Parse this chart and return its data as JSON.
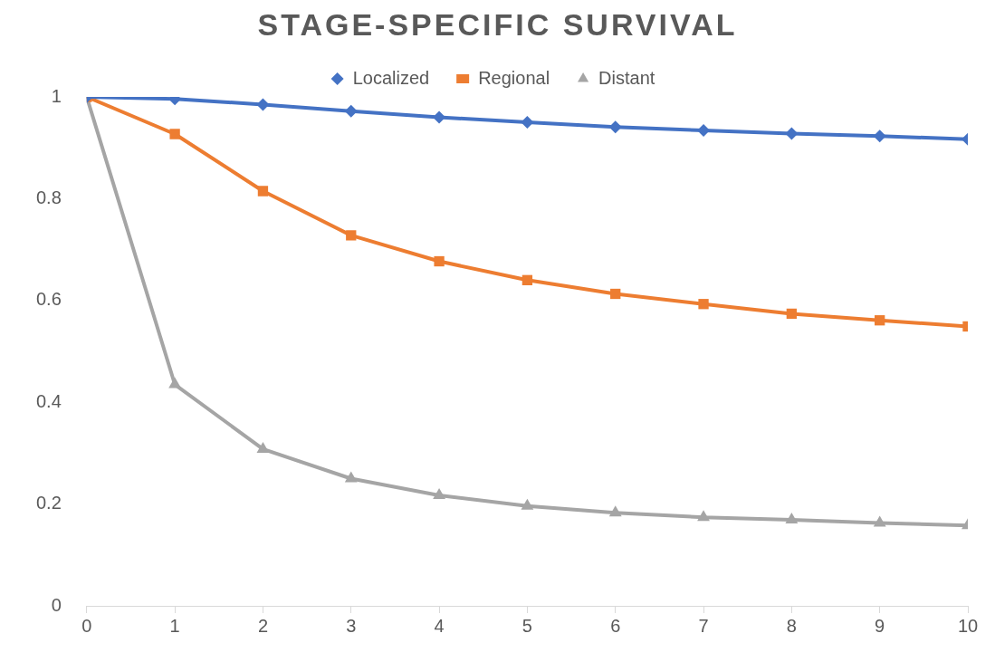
{
  "chart_data": {
    "type": "line",
    "title": "STAGE-SPECIFIC SURVIVAL",
    "x": [
      0,
      1,
      2,
      3,
      4,
      5,
      6,
      7,
      8,
      9,
      10
    ],
    "xlim": [
      0,
      10
    ],
    "xticks": [
      0,
      1,
      2,
      3,
      4,
      5,
      6,
      7,
      8,
      9,
      10
    ],
    "ylim": [
      0,
      1
    ],
    "yticks": [
      0,
      0.2,
      0.4,
      0.6,
      0.8,
      1
    ],
    "grid": false,
    "legend": "top",
    "line_style": "solid",
    "series": [
      {
        "name": "Localized",
        "color": "#4472c4",
        "marker": "diamond",
        "values": [
          1,
          0.996,
          0.985,
          0.972,
          0.96,
          0.95,
          0.941,
          0.934,
          0.928,
          0.923,
          0.917
        ]
      },
      {
        "name": "Regional",
        "color": "#ed7d31",
        "marker": "square",
        "values": [
          1,
          0.927,
          0.815,
          0.728,
          0.677,
          0.64,
          0.613,
          0.593,
          0.574,
          0.561,
          0.549
        ]
      },
      {
        "name": "Distant",
        "color": "#a5a5a5",
        "marker": "triangle",
        "values": [
          1,
          0.435,
          0.308,
          0.25,
          0.217,
          0.196,
          0.183,
          0.174,
          0.169,
          0.163,
          0.158
        ]
      }
    ]
  }
}
